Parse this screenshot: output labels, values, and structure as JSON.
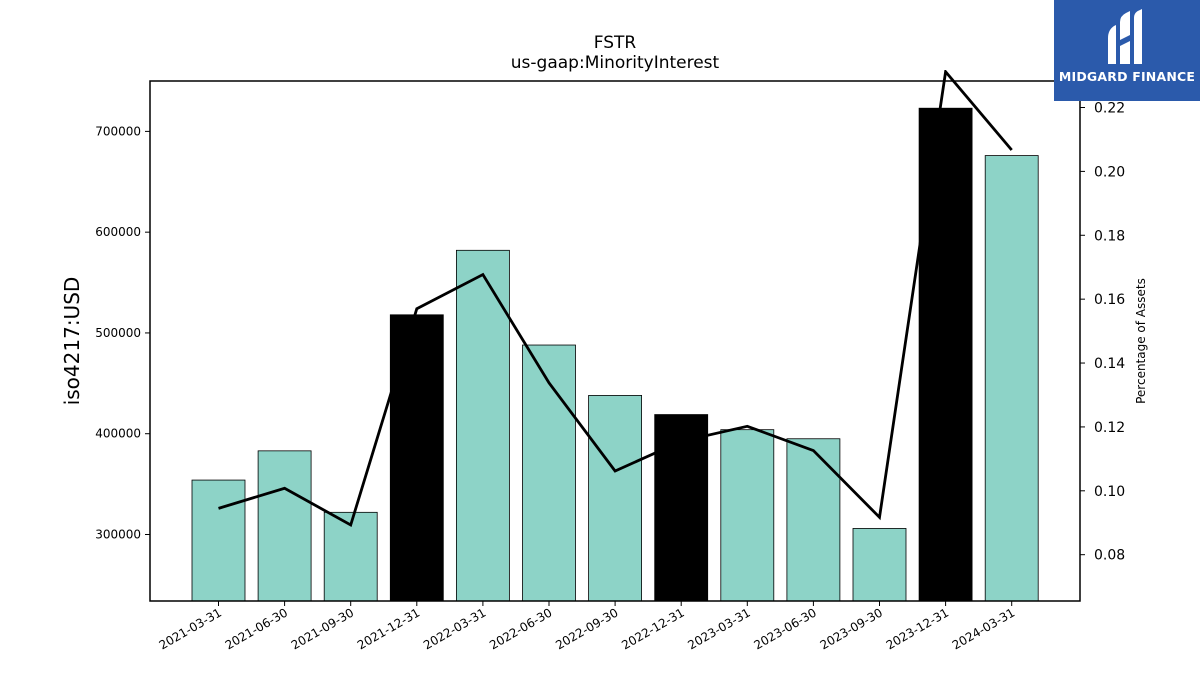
{
  "chart_data": {
    "type": "bar",
    "title": "FSTR",
    "subtitle": "us-gaap:MinorityInterest",
    "ylabel": "iso4217:USD",
    "y2label": "Percentage of Assets",
    "categories": [
      "2021-03-31",
      "2021-06-30",
      "2021-09-30",
      "2021-12-31",
      "2022-03-31",
      "2022-06-30",
      "2022-09-30",
      "2022-12-31",
      "2023-03-31",
      "2023-06-30",
      "2023-09-30",
      "2023-12-31",
      "2024-03-31"
    ],
    "series": [
      {
        "type": "bar",
        "values": [
          354000,
          383000,
          322000,
          518000,
          582000,
          488000,
          438000,
          419000,
          404000,
          395000,
          306000,
          723000,
          676000
        ],
        "highlight": [
          false,
          false,
          false,
          true,
          false,
          false,
          false,
          true,
          false,
          false,
          false,
          true,
          false
        ]
      },
      {
        "type": "line",
        "axis": "right",
        "values": [
          0.0945,
          0.1008,
          0.0893,
          0.157,
          0.1677,
          0.1338,
          0.1062,
          0.1155,
          0.1202,
          0.1126,
          0.0917,
          0.2312,
          0.2067
        ]
      }
    ],
    "ylim": [
      234000,
      750000
    ],
    "yticks": [
      300000,
      400000,
      500000,
      600000,
      700000
    ],
    "y2lim": [
      0.0655,
      0.2283
    ],
    "y2ticks": [
      "0.08",
      "0.10",
      "0.12",
      "0.14",
      "0.16",
      "0.18",
      "0.20",
      "0.22"
    ],
    "colors": {
      "bar": "#8dd3c7",
      "highlight": "#000000",
      "line": "#000000"
    },
    "grid": false
  },
  "logo": {
    "text": "MIDGARD FINANCE",
    "color": "#2b5aab"
  }
}
